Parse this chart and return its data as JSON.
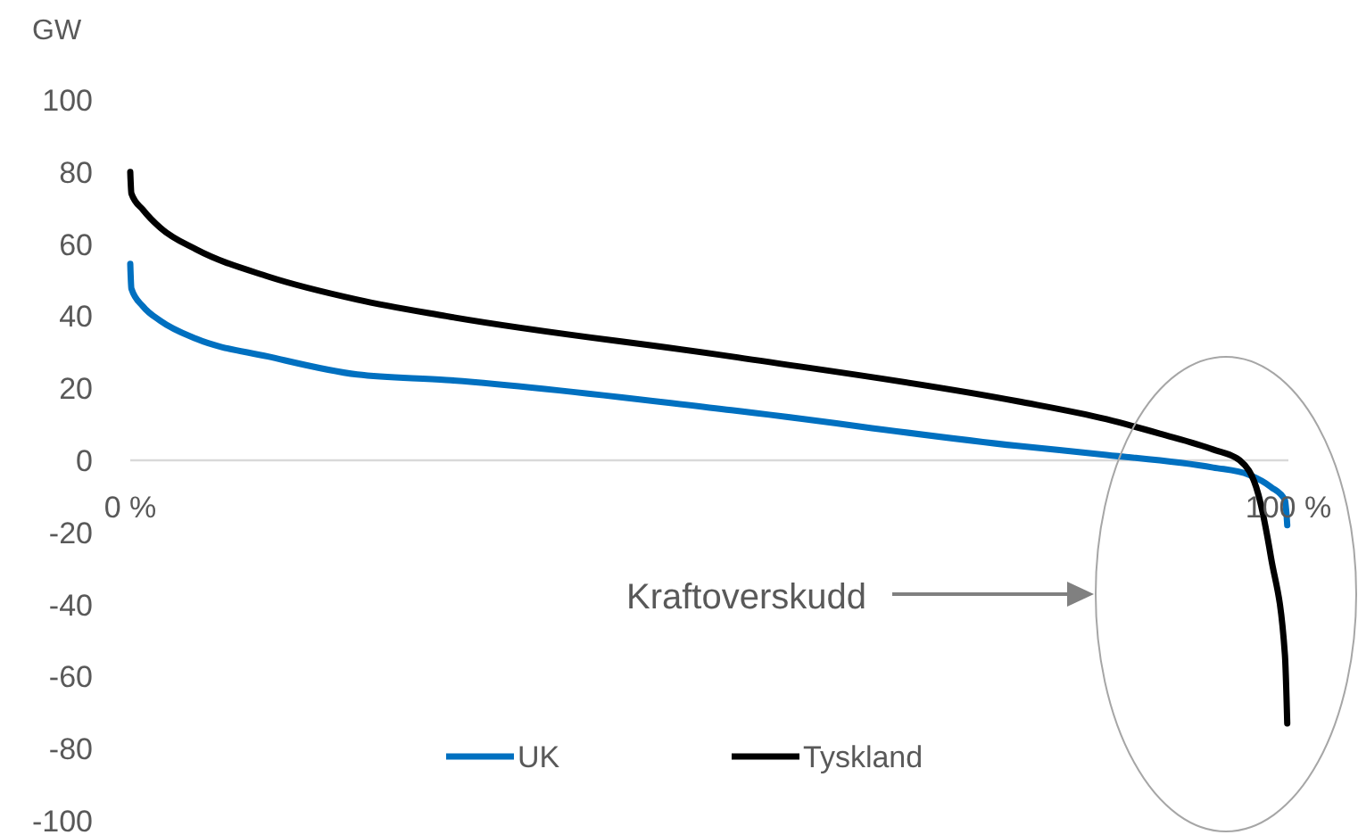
{
  "chart_data": {
    "type": "line",
    "ylabel": "GW",
    "annotations": [
      "Kraftoverskudd"
    ],
    "xlim": [
      0,
      100
    ],
    "xticks": [
      {
        "value": 0,
        "label": "0 %"
      },
      {
        "value": 100,
        "label": "100 %"
      }
    ],
    "ylim": [
      -100,
      100
    ],
    "yticks": [
      -100,
      -80,
      -60,
      -40,
      -20,
      0,
      20,
      40,
      60,
      80,
      100
    ],
    "grid": false,
    "legend": "bottom",
    "marker": "none",
    "line_style": "solid",
    "series": [
      {
        "name": "UK",
        "color": "#0070c0",
        "x": [
          0,
          0.1,
          1.1,
          2.6,
          5.7,
          11.9,
          19.6,
          27.3,
          51.9,
          76.6,
          84.3,
          93.5,
          96.6,
          98.5,
          99.7,
          99.9
        ],
        "values": [
          54.5,
          47.6,
          42.7,
          38.7,
          33.7,
          28.8,
          23.8,
          22.3,
          13.9,
          4,
          1.5,
          -2,
          -4,
          -7.4,
          -11,
          -18
        ]
      },
      {
        "name": "Tyskland",
        "color": "#000000",
        "x": [
          0,
          0.1,
          1.1,
          2.6,
          5.7,
          11.9,
          19.6,
          27.3,
          51.9,
          76.6,
          84.3,
          88.9,
          93.5,
          95.8,
          97.4,
          98.5,
          99.7,
          99.9
        ],
        "values": [
          80,
          74,
          69.5,
          64.5,
          58.5,
          51,
          44.6,
          40,
          28.8,
          16.4,
          11.4,
          7.4,
          3,
          0,
          -9.4,
          -27,
          -54,
          -73
        ]
      }
    ]
  }
}
